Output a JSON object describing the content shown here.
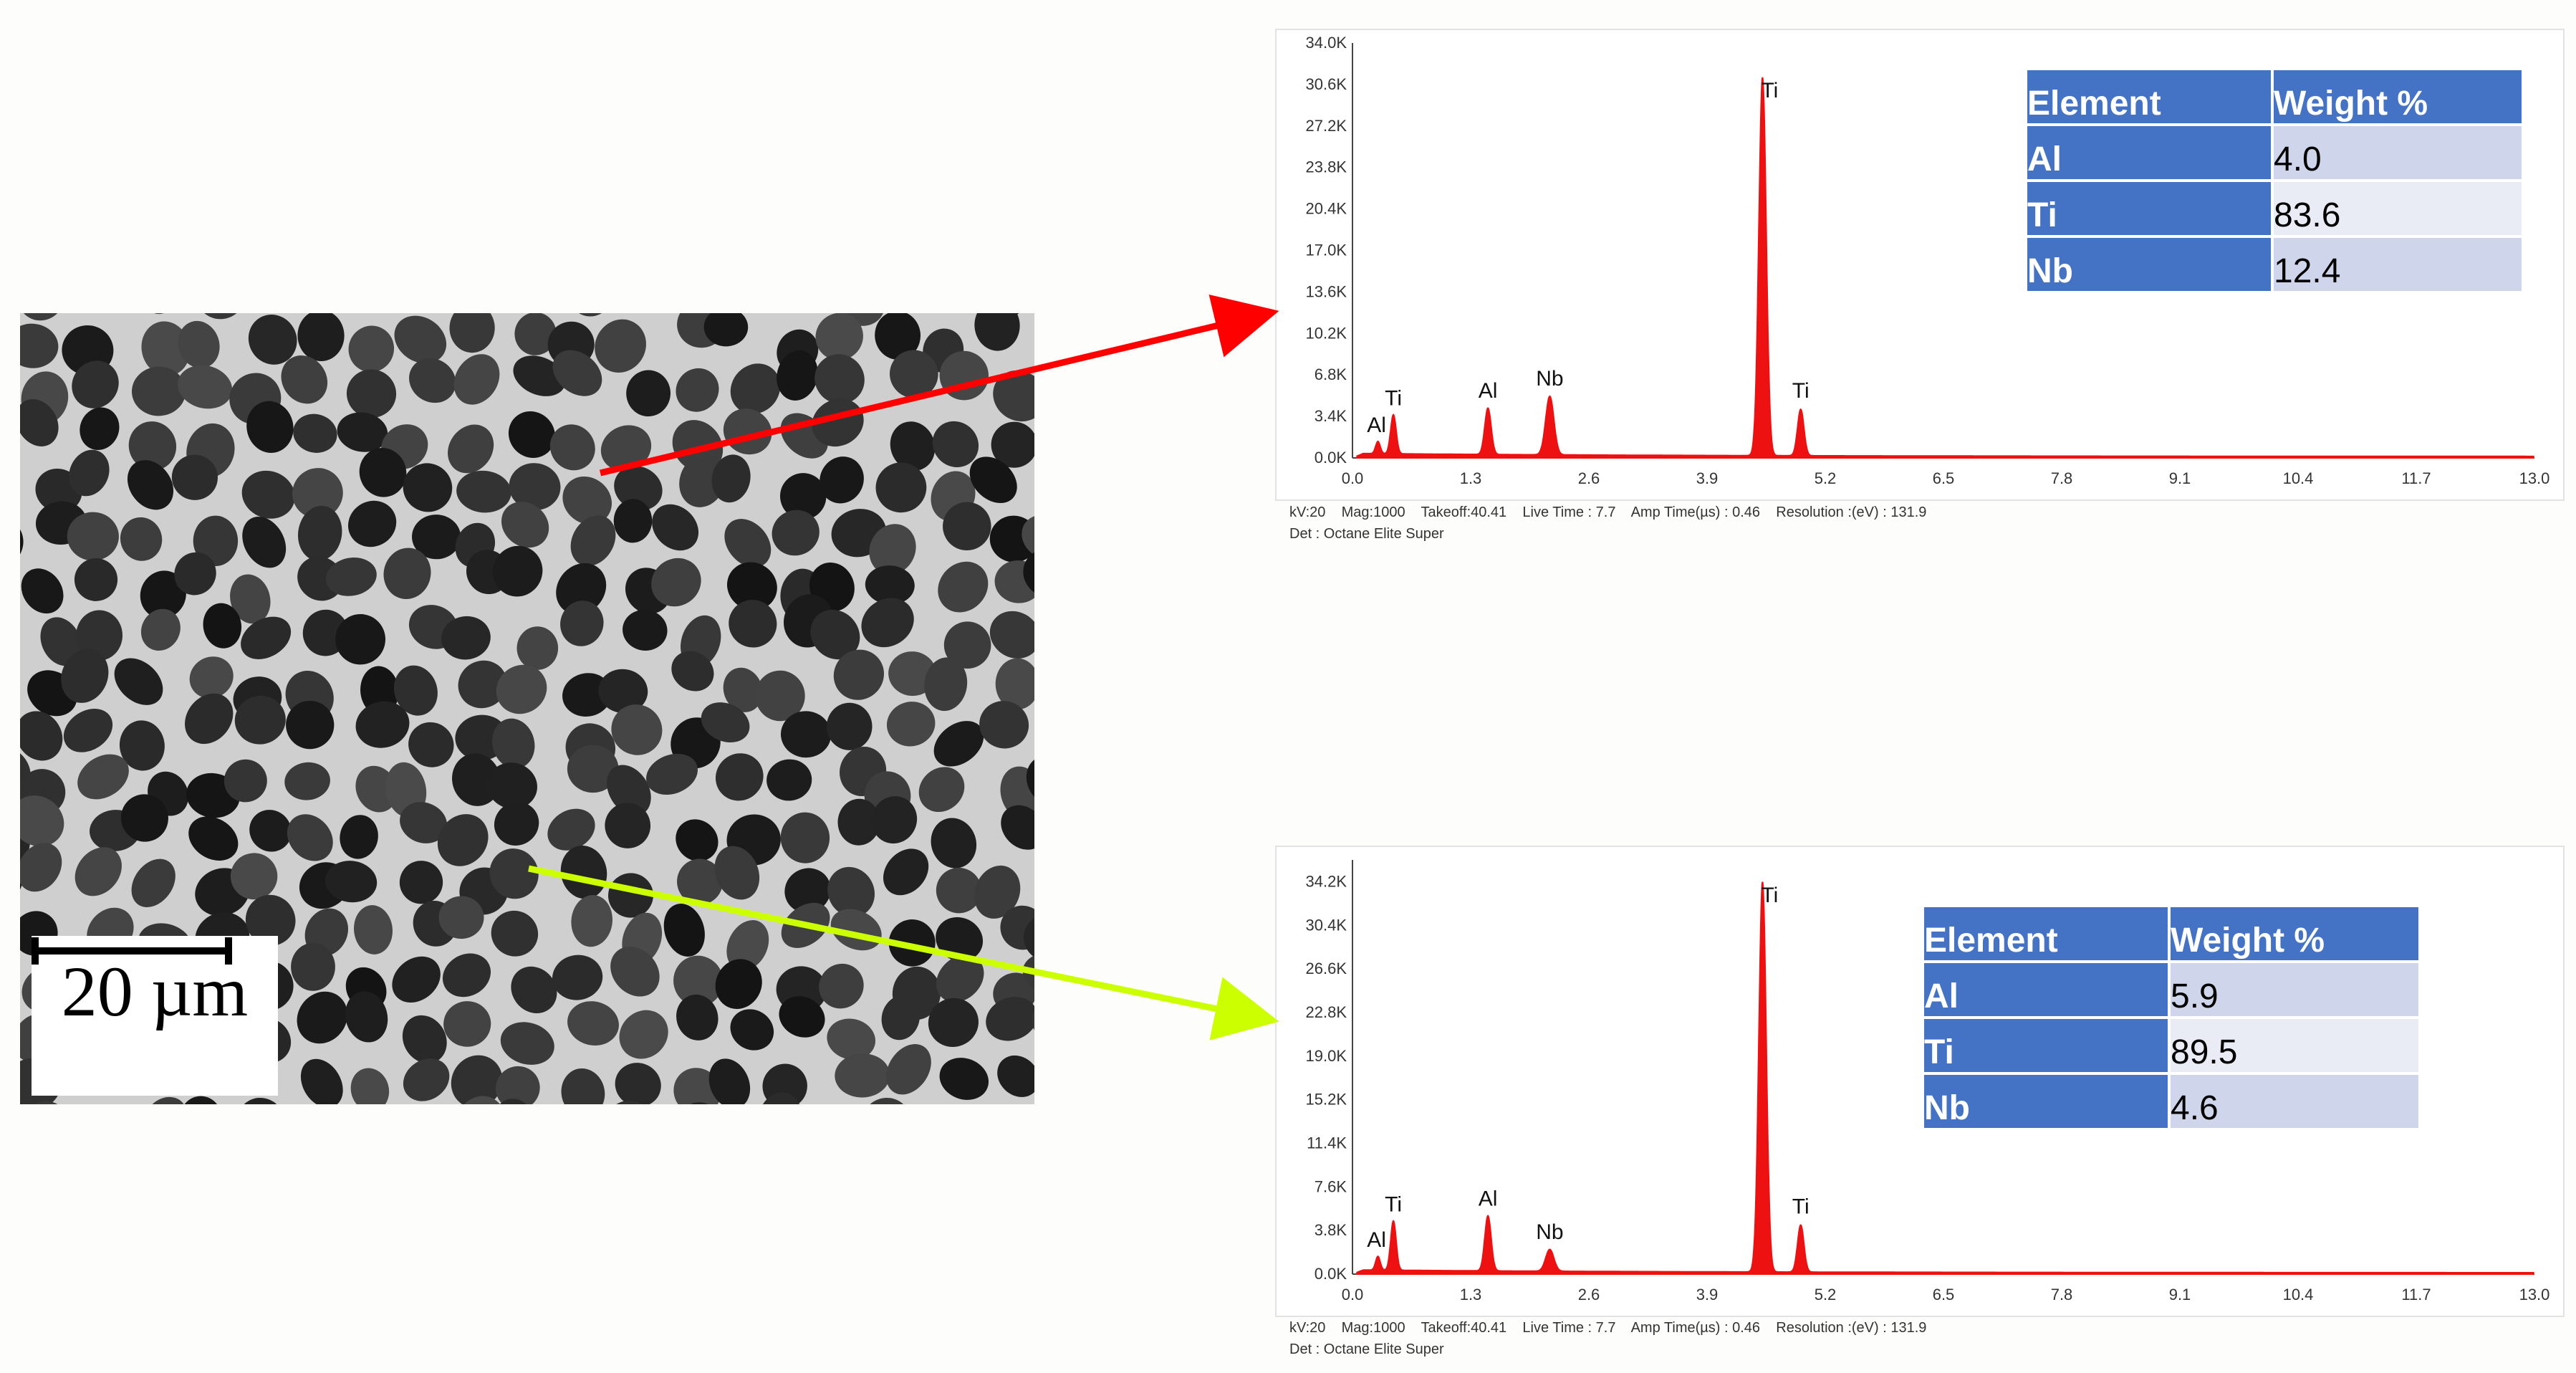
{
  "colors": {
    "spectrum": "#ee1111",
    "arrow_top": "#ff0000",
    "arrow_bottom": "#ccff00",
    "table_header": "#4472c4",
    "table_row_a": "#cfd5ea",
    "table_row_b": "#e9ebf5"
  },
  "micrograph": {
    "scale_label": "20 µm"
  },
  "spectra_meta": {
    "line1": "kV:20    Mag:1000    Takeoff:40.41    Live Time : 7.7    Amp Time(µs) : 0.46    Resolution :(eV) : 131.9",
    "line2": "Det : Octane Elite Super"
  },
  "chart_data": [
    {
      "type": "line",
      "xlim": [
        0.0,
        13.0
      ],
      "ylim": [
        0,
        34000
      ],
      "x_ticks": [
        "0.0",
        "1.3",
        "2.6",
        "3.9",
        "5.2",
        "6.5",
        "7.8",
        "9.1",
        "10.4",
        "11.7",
        "13.0"
      ],
      "y_ticks": [
        "0.0K",
        "3.4K",
        "6.8K",
        "10.2K",
        "13.6K",
        "17.0K",
        "20.4K",
        "23.8K",
        "27.2K",
        "30.6K",
        "34.0K"
      ],
      "peaks": [
        {
          "label": "Al",
          "x": 0.28,
          "y": 1000
        },
        {
          "label": "Ti",
          "x": 0.45,
          "y": 3200
        },
        {
          "label": "Al",
          "x": 1.49,
          "y": 3800
        },
        {
          "label": "Nb",
          "x": 2.17,
          "y": 4800
        },
        {
          "label": "Ti",
          "x": 4.51,
          "y": 31000
        },
        {
          "label": "Ti",
          "x": 4.93,
          "y": 3800
        }
      ],
      "table": {
        "headers": [
          "Element",
          "Weight %"
        ],
        "rows": [
          [
            "Al",
            "4.0"
          ],
          [
            "Ti",
            "83.6"
          ],
          [
            "Nb",
            "12.4"
          ]
        ]
      }
    },
    {
      "type": "line",
      "xlim": [
        0.0,
        13.0
      ],
      "ylim": [
        0,
        36100
      ],
      "x_ticks": [
        "0.0",
        "1.3",
        "2.6",
        "3.9",
        "5.2",
        "6.5",
        "7.8",
        "9.1",
        "10.4",
        "11.7",
        "13.0"
      ],
      "y_ticks": [
        "0.0K",
        "3.8K",
        "7.6K",
        "11.4K",
        "15.2K",
        "19.0K",
        "22.8K",
        "26.6K",
        "30.4K",
        "34.2K"
      ],
      "peaks": [
        {
          "label": "Al",
          "x": 0.28,
          "y": 1200
        },
        {
          "label": "Ti",
          "x": 0.45,
          "y": 4300
        },
        {
          "label": "Al",
          "x": 1.49,
          "y": 4800
        },
        {
          "label": "Nb",
          "x": 2.17,
          "y": 1900
        },
        {
          "label": "Ti",
          "x": 4.51,
          "y": 34000
        },
        {
          "label": "Ti",
          "x": 4.93,
          "y": 4100
        }
      ],
      "table": {
        "headers": [
          "Element",
          "Weight %"
        ],
        "rows": [
          [
            "Al",
            "5.9"
          ],
          [
            "Ti",
            "89.5"
          ],
          [
            "Nb",
            "4.6"
          ]
        ]
      }
    }
  ]
}
